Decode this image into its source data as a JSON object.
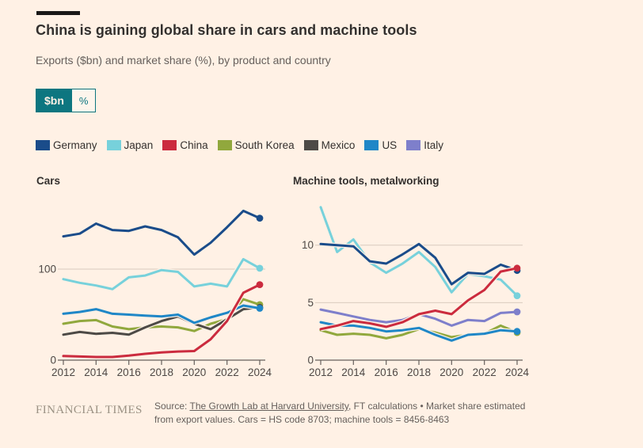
{
  "page": {
    "background": "#FFF1E5",
    "accent_color": "#0D7680"
  },
  "header": {
    "title": "China is gaining global share in cars and machine tools",
    "subtitle": "Exports ($bn) and market share (%), by product and country"
  },
  "toggle": {
    "options": [
      {
        "label": "$bn",
        "active": true
      },
      {
        "label": "%",
        "active": false
      }
    ]
  },
  "legend": {
    "items": [
      {
        "label": "Germany",
        "color": "#1A4C8A"
      },
      {
        "label": "Japan",
        "color": "#77D1DB"
      },
      {
        "label": "China",
        "color": "#CB2B3E"
      },
      {
        "label": "South Korea",
        "color": "#91A83D"
      },
      {
        "label": "Mexico",
        "color": "#4D4A46"
      },
      {
        "label": "US",
        "color": "#1F87C7"
      },
      {
        "label": "Italy",
        "color": "#7E7FCB"
      }
    ]
  },
  "chart_data": [
    {
      "type": "line",
      "title": "Cars",
      "x": [
        2012,
        2013,
        2014,
        2015,
        2016,
        2017,
        2018,
        2019,
        2020,
        2021,
        2022,
        2023,
        2024
      ],
      "x_ticks": [
        2012,
        2014,
        2016,
        2018,
        2020,
        2022,
        2024
      ],
      "y_ticks": [
        0,
        100
      ],
      "ylim": [
        0,
        187
      ],
      "grid": "horizontal",
      "legend_position": "top-shared",
      "end_dot_on_last_point": true,
      "series": [
        {
          "name": "South Korea",
          "color": "#91A83D",
          "values": [
            40,
            43,
            44,
            37,
            34,
            36,
            37,
            36,
            32,
            40,
            45,
            67,
            61
          ]
        },
        {
          "name": "Mexico",
          "color": "#4D4A46",
          "values": [
            28,
            31,
            29,
            30,
            28,
            36,
            43,
            48,
            40,
            34,
            45,
            56,
            58
          ]
        },
        {
          "name": "US",
          "color": "#1F87C7",
          "values": [
            51,
            53,
            56,
            51,
            50,
            49,
            48,
            50,
            41,
            47,
            52,
            60,
            57
          ]
        },
        {
          "name": "Japan",
          "color": "#77D1DB",
          "values": [
            89,
            85,
            82,
            78,
            91,
            93,
            99,
            97,
            81,
            84,
            81,
            111,
            101
          ]
        },
        {
          "name": "Germany",
          "color": "#1A4C8A",
          "values": [
            136,
            139,
            150,
            143,
            142,
            147,
            143,
            135,
            116,
            129,
            146,
            164,
            156
          ]
        },
        {
          "name": "China",
          "color": "#CB2B3E",
          "values": [
            4.5,
            4,
            3.5,
            3.5,
            5,
            7,
            8.5,
            9.5,
            10,
            23,
            43,
            74,
            83
          ]
        }
      ]
    },
    {
      "type": "line",
      "title": "Machine tools, metalworking",
      "x": [
        2012,
        2013,
        2014,
        2015,
        2016,
        2017,
        2018,
        2019,
        2020,
        2021,
        2022,
        2023,
        2024
      ],
      "x_ticks": [
        2012,
        2014,
        2016,
        2018,
        2020,
        2022,
        2024
      ],
      "y_ticks": [
        0,
        5,
        10
      ],
      "ylim": [
        0,
        14.8
      ],
      "grid": "horizontal",
      "legend_position": "top-shared",
      "end_dot_on_last_point": true,
      "series": [
        {
          "name": "South Korea",
          "color": "#91A83D",
          "values": [
            2.6,
            2.2,
            2.3,
            2.2,
            1.9,
            2.2,
            2.7,
            2.4,
            2.0,
            2.2,
            2.3,
            3.0,
            2.4
          ]
        },
        {
          "name": "US",
          "color": "#1F87C7",
          "values": [
            3.3,
            3.0,
            3.0,
            2.8,
            2.5,
            2.6,
            2.8,
            2.2,
            1.7,
            2.2,
            2.3,
            2.6,
            2.5
          ]
        },
        {
          "name": "Italy",
          "color": "#7E7FCB",
          "values": [
            4.4,
            4.1,
            3.8,
            3.5,
            3.3,
            3.5,
            4.0,
            3.6,
            3.0,
            3.5,
            3.4,
            4.1,
            4.2
          ]
        },
        {
          "name": "Japan",
          "color": "#77D1DB",
          "values": [
            13.3,
            9.4,
            10.5,
            8.5,
            7.6,
            8.4,
            9.4,
            8.1,
            5.9,
            7.5,
            7.3,
            7.0,
            5.6
          ]
        },
        {
          "name": "Germany",
          "color": "#1A4C8A",
          "values": [
            10.1,
            10.0,
            9.9,
            8.6,
            8.4,
            9.2,
            10.1,
            8.9,
            6.6,
            7.6,
            7.5,
            8.3,
            7.8
          ]
        },
        {
          "name": "China",
          "color": "#CB2B3E",
          "values": [
            2.7,
            3.0,
            3.4,
            3.2,
            2.9,
            3.3,
            4.0,
            4.3,
            4.0,
            5.2,
            6.1,
            7.7,
            8.0
          ]
        }
      ]
    }
  ],
  "footer": {
    "logo": "FINANCIAL TIMES",
    "source_prefix": "Source: ",
    "source_link": "The Growth Lab at Harvard University",
    "source_rest": ", FT calculations • Market share estimated from export values. Cars = HS code 8703; machine tools = 8456-8463"
  }
}
